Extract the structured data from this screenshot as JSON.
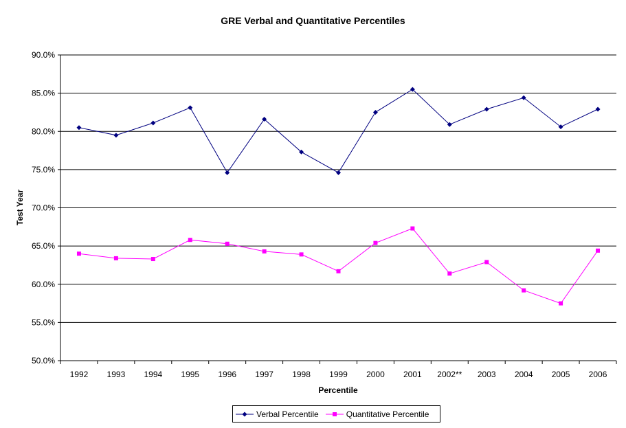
{
  "chart_data": {
    "type": "line",
    "title": "GRE Verbal and Quantitative Percentiles",
    "xlabel": "Percentile",
    "ylabel": "Test Year",
    "categories": [
      "1992",
      "1993",
      "1994",
      "1995",
      "1996",
      "1997",
      "1998",
      "1999",
      "2000",
      "2001",
      "2002**",
      "2003",
      "2004",
      "2005",
      "2006"
    ],
    "ylim": [
      50,
      90
    ],
    "yticks": [
      "90.0%",
      "85.0%",
      "80.0%",
      "75.0%",
      "70.0%",
      "65.0%",
      "60.0%",
      "55.0%",
      "50.0%"
    ],
    "ytick_values": [
      90,
      85,
      80,
      75,
      70,
      65,
      60,
      55,
      50
    ],
    "grid": true,
    "legend_position": "bottom",
    "series": [
      {
        "name": "Verbal Percentile",
        "color": "#000080",
        "marker": "diamond",
        "values": [
          80.5,
          79.5,
          81.1,
          83.1,
          74.6,
          81.6,
          77.3,
          74.6,
          82.5,
          85.5,
          80.9,
          82.9,
          84.4,
          80.6,
          82.9
        ]
      },
      {
        "name": "Quantitative Percentile",
        "color": "#FF00FF",
        "marker": "square",
        "values": [
          64.0,
          63.4,
          63.3,
          65.8,
          65.3,
          64.3,
          63.9,
          61.7,
          65.4,
          67.3,
          61.4,
          62.9,
          59.2,
          57.5,
          64.4
        ]
      }
    ]
  }
}
